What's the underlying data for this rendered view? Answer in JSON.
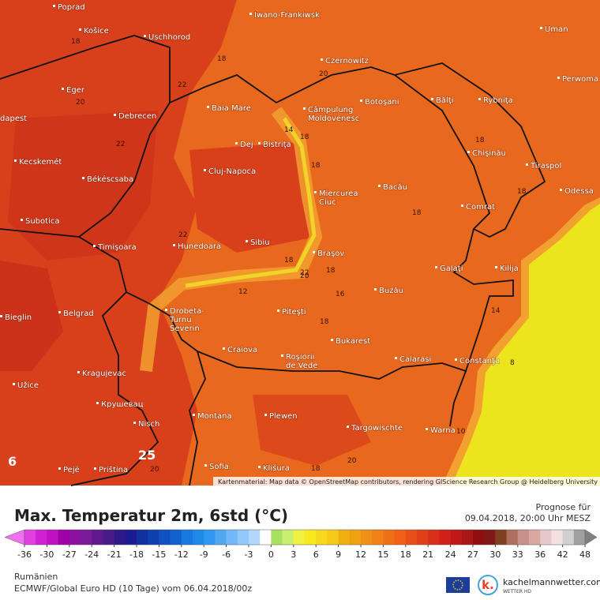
{
  "map": {
    "cities": [
      "Poprad",
      "Košice",
      "Uschhorod",
      "Iwano-Frankiwsk",
      "Uman",
      "Czernowitz",
      "Perwoma",
      "Eger",
      "Baia Mare",
      [
        "Câmpulung",
        "Moldovenesc"
      ],
      "Botoşani",
      "Bălţi",
      "Rybniţa",
      "dapest",
      "Debrecen",
      "Dej",
      "Bistriţa",
      "Chişinău",
      "Kecskemét",
      "Cluj-Napoca",
      "Tiraspol",
      "Békéscsaba",
      [
        "Miercurea",
        "Ciuc"
      ],
      "Bacău",
      "Odessa",
      "Comrat",
      "Subotica",
      "Timişoara",
      "Hunedoara",
      "Sibiu",
      "Braşov",
      "Galaţi",
      "Kilija",
      "Buzău",
      "Bieglin",
      "Belgrad",
      [
        "Drobeta-",
        "Turnu",
        "Severin"
      ],
      "Piteşti",
      "Craiova",
      "Bukarest",
      [
        "Roşiorii",
        "de Vede"
      ],
      "Calarasi",
      "Constanţa",
      "Kragujevac",
      "Užice",
      "Крушевац",
      "Montana",
      "Plewen",
      "Targowischte",
      "Warna",
      "Nisch",
      "Sofia",
      "Kliśura",
      "Pejë",
      "Priština"
    ],
    "contour_labels": [
      18,
      18,
      20,
      22,
      20,
      14,
      18,
      22,
      18,
      18,
      18,
      18,
      22,
      20,
      18,
      22,
      18,
      12,
      16,
      18,
      14,
      8,
      20,
      18,
      20,
      10
    ],
    "extremes": [
      25,
      6
    ],
    "attribution": "Kartenmaterial: Map data © OpenStreetMap contributors, rendering GIScience Research Group @ Heidelberg University"
  },
  "header": {
    "title": "Max. Temperatur 2m, 6std (°C)",
    "forecast_label": "Prognose für",
    "forecast_time": "09.04.2018, 20:00 Uhr MESZ"
  },
  "legend": {
    "ticks": [
      -36,
      -30,
      -27,
      -24,
      -21,
      -18,
      -15,
      -12,
      -9,
      -6,
      -3,
      0,
      3,
      6,
      9,
      12,
      15,
      18,
      21,
      24,
      27,
      30,
      33,
      36,
      42,
      48
    ],
    "colors": [
      "#e040e0",
      "#d020d0",
      "#c010c0",
      "#a000a8",
      "#8c10a0",
      "#7a1a98",
      "#601890",
      "#4a1a88",
      "#301888",
      "#1c1c90",
      "#1030a0",
      "#1040b0",
      "#1050c0",
      "#1060d0",
      "#1878e0",
      "#2088e8",
      "#3098f0",
      "#50a8f0",
      "#70b8f8",
      "#90c8f8",
      "#b0d8fc",
      "#ffffff",
      "#a8e060",
      "#c8f070",
      "#f0f040",
      "#f8e820",
      "#f8d820",
      "#f8c818",
      "#f0b010",
      "#f0a010",
      "#f09018",
      "#f08018",
      "#f07018",
      "#f06018",
      "#e85018",
      "#e04018",
      "#d83018",
      "#d02018",
      "#c01818",
      "#a81818",
      "#901010",
      "#801818",
      "#804020",
      "#b07060",
      "#c89088",
      "#d8a8a0",
      "#e8c8c8",
      "#f4e0e0",
      "#d0d0d0",
      "#a0a0a0"
    ],
    "low_color": "#f070f0",
    "high_color": "#808080"
  },
  "footer": {
    "region": "Rumänien",
    "model": "ECMWF/Global Euro HD (10 Tage) vom 06.04.2018/00z",
    "brand": "kachelmannwetter.com",
    "brand_sub": "WETTER HD"
  }
}
